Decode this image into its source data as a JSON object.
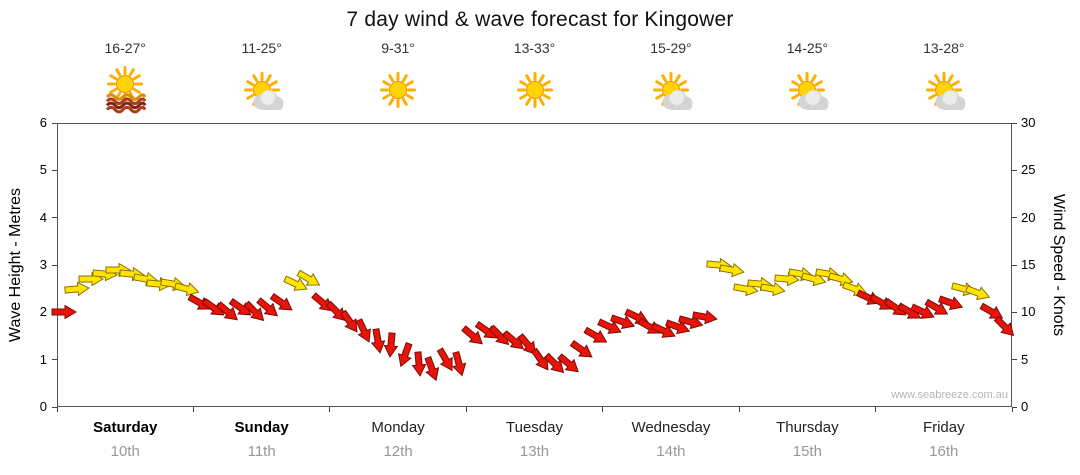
{
  "title": "7 day wind & wave forecast for Kingower",
  "watermark": "www.seabreeze.com.au",
  "chart_data": {
    "type": "wind_arrows",
    "left_axis": {
      "label": "Wave Height - Metres",
      "min": 0,
      "max": 6,
      "ticks": [
        0,
        1,
        2,
        3,
        4,
        5,
        6
      ]
    },
    "right_axis": {
      "label": "Wind Speed - Knots",
      "min": 0,
      "max": 30,
      "ticks": [
        0,
        5,
        10,
        15,
        20,
        25,
        30
      ]
    },
    "grid": false,
    "arrow_colors": {
      "y": "#FFE400",
      "r": "#E81309"
    },
    "arrow_outlines": {
      "y": "#8a7000",
      "r": "#7a0c06"
    },
    "days": [
      {
        "name": "Saturday",
        "date": "10th",
        "temp": "16-27°",
        "icon": "sun-waves",
        "weekend": true,
        "wind": [
          [
            10,
            0,
            "r"
          ],
          [
            12.5,
            -5,
            "y"
          ],
          [
            13.5,
            0,
            "y"
          ],
          [
            14,
            5,
            "y"
          ],
          [
            14.5,
            0,
            "y"
          ],
          [
            14,
            5,
            "y"
          ],
          [
            13.5,
            10,
            "y"
          ],
          [
            13,
            5,
            "y"
          ],
          [
            13,
            10,
            "y"
          ],
          [
            12.5,
            15,
            "y"
          ]
        ]
      },
      {
        "name": "Sunday",
        "date": "11th",
        "temp": "11-25°",
        "icon": "sun-cloud",
        "weekend": true,
        "wind": [
          [
            11,
            30,
            "r"
          ],
          [
            10.5,
            35,
            "r"
          ],
          [
            10,
            40,
            "r"
          ],
          [
            10.5,
            35,
            "r"
          ],
          [
            10,
            45,
            "r"
          ],
          [
            10.5,
            40,
            "r"
          ],
          [
            11,
            35,
            "r"
          ],
          [
            13,
            25,
            "y"
          ],
          [
            13.5,
            30,
            "y"
          ],
          [
            11,
            40,
            "r"
          ]
        ]
      },
      {
        "name": "Monday",
        "date": "12th",
        "temp": "9-31°",
        "icon": "sun",
        "weekend": false,
        "wind": [
          [
            10,
            45,
            "r"
          ],
          [
            9,
            55,
            "r"
          ],
          [
            8,
            65,
            "r"
          ],
          [
            7,
            80,
            "r"
          ],
          [
            6.5,
            95,
            "r"
          ],
          [
            5.5,
            110,
            "r"
          ],
          [
            4.5,
            85,
            "r"
          ],
          [
            4,
            70,
            "r"
          ],
          [
            5,
            60,
            "r"
          ],
          [
            4.5,
            75,
            "r"
          ]
        ]
      },
      {
        "name": "Tuesday",
        "date": "13th",
        "temp": "13-33°",
        "icon": "sun",
        "weekend": false,
        "wind": [
          [
            7.5,
            40,
            "r"
          ],
          [
            8,
            35,
            "r"
          ],
          [
            7.5,
            45,
            "r"
          ],
          [
            7,
            40,
            "r"
          ],
          [
            6.5,
            50,
            "r"
          ],
          [
            5,
            55,
            "r"
          ],
          [
            4.5,
            45,
            "r"
          ],
          [
            4.5,
            40,
            "r"
          ],
          [
            6,
            35,
            "r"
          ],
          [
            7.5,
            30,
            "r"
          ]
        ]
      },
      {
        "name": "Wednesday",
        "date": "14th",
        "temp": "15-29°",
        "icon": "sun-cloud",
        "weekend": false,
        "wind": [
          [
            8.5,
            25,
            "r"
          ],
          [
            9,
            20,
            "r"
          ],
          [
            9.5,
            25,
            "r"
          ],
          [
            8.5,
            30,
            "r"
          ],
          [
            8,
            25,
            "r"
          ],
          [
            8.5,
            20,
            "r"
          ],
          [
            9,
            15,
            "r"
          ],
          [
            9.5,
            10,
            "r"
          ],
          [
            15,
            5,
            "y"
          ],
          [
            14.5,
            10,
            "y"
          ]
        ]
      },
      {
        "name": "Thursday",
        "date": "15th",
        "temp": "14-25°",
        "icon": "sun-cloud",
        "weekend": false,
        "wind": [
          [
            12.5,
            10,
            "y"
          ],
          [
            13,
            5,
            "y"
          ],
          [
            12.5,
            10,
            "y"
          ],
          [
            13.5,
            5,
            "y"
          ],
          [
            14,
            10,
            "y"
          ],
          [
            13.5,
            15,
            "y"
          ],
          [
            14,
            10,
            "y"
          ],
          [
            13.5,
            15,
            "y"
          ],
          [
            12.5,
            20,
            "y"
          ],
          [
            11.5,
            25,
            "r"
          ]
        ]
      },
      {
        "name": "Friday",
        "date": "16th",
        "temp": "13-28°",
        "icon": "sun-cloud",
        "weekend": false,
        "wind": [
          [
            11,
            30,
            "r"
          ],
          [
            10.5,
            35,
            "r"
          ],
          [
            10,
            30,
            "r"
          ],
          [
            10,
            25,
            "r"
          ],
          [
            10.5,
            30,
            "r"
          ],
          [
            11,
            20,
            "r"
          ],
          [
            12.5,
            15,
            "y"
          ],
          [
            12,
            20,
            "y"
          ],
          [
            10,
            30,
            "r"
          ],
          [
            8.5,
            45,
            "r"
          ]
        ]
      }
    ]
  }
}
